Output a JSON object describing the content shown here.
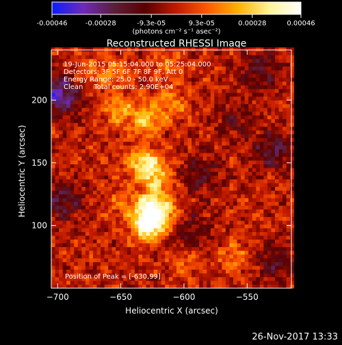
{
  "chart_data": {
    "type": "heatmap",
    "title": "Reconstructed RHESSI Image",
    "xlabel": "Heliocentric X (arcsec)",
    "ylabel": "Heliocentric Y (arcsec)",
    "xlim": [
      -705,
      -515
    ],
    "ylim": [
      50,
      240
    ],
    "xticks": [
      -700,
      -650,
      -600,
      -550
    ],
    "yticks": [
      100,
      150,
      200
    ],
    "colorbar": {
      "ticks": [
        "-0.00046",
        "-0.00028",
        "-9.3e-05",
        "9.3e-05",
        "0.00028",
        "0.00046"
      ],
      "tick_values": [
        -0.00046,
        -0.00028,
        -9.3e-05,
        9.3e-05,
        0.00028,
        0.00046
      ],
      "min": -0.00046,
      "max": 0.00046,
      "unit_label": "(photons cm⁻² s⁻¹ asec⁻²)",
      "colors": [
        "#0b1dff",
        "#6e2ab8",
        "#5b1f3a",
        "#5a0000",
        "#c21a00",
        "#ff5a00",
        "#ffb300",
        "#fff59a",
        "#ffffff"
      ]
    },
    "annotations": [
      "19-Jun-2015 05:15:04.000 to 05:25:04.000",
      "Detectors: 3F 5F 6F 7F 8F 9F, Att 0",
      "Energy Range: 25.0 - 50.0 keV",
      "Clean     Total counts: 2.90E+04"
    ],
    "peak_label": "Position of Peak = [-630,99]",
    "peak": [
      -630,
      99
    ],
    "sources": [
      {
        "x": -628,
        "y": 101,
        "amp": 0.00046
      },
      {
        "x": -625,
        "y": 114,
        "amp": 0.00038
      },
      {
        "x": -632,
        "y": 150,
        "amp": 0.0003
      },
      {
        "x": -622,
        "y": 139,
        "amp": 0.00022
      },
      {
        "x": -630,
        "y": 185,
        "amp": 0.00024
      },
      {
        "x": -652,
        "y": 192,
        "amp": 0.00018
      },
      {
        "x": -610,
        "y": 196,
        "amp": 0.00016
      },
      {
        "x": -612,
        "y": 228,
        "amp": 0.00014
      },
      {
        "x": -675,
        "y": 222,
        "amp": 0.00012
      },
      {
        "x": -655,
        "y": 222,
        "amp": 0.00012
      },
      {
        "x": -560,
        "y": 75,
        "amp": 0.00014
      },
      {
        "x": -598,
        "y": 72,
        "amp": 0.0001
      },
      {
        "x": -650,
        "y": 120,
        "amp": 0.0001
      },
      {
        "x": -610,
        "y": 110,
        "amp": 0.0001
      }
    ],
    "negatives": [
      {
        "x": -698,
        "y": 205,
        "amp": -0.00034
      },
      {
        "x": -696,
        "y": 120,
        "amp": -0.0002
      },
      {
        "x": -530,
        "y": 160,
        "amp": -0.0002
      },
      {
        "x": -540,
        "y": 225,
        "amp": -0.00018
      },
      {
        "x": -585,
        "y": 140,
        "amp": -0.00015
      },
      {
        "x": -595,
        "y": 95,
        "amp": -0.00016
      },
      {
        "x": -528,
        "y": 70,
        "amp": -0.00016
      },
      {
        "x": -560,
        "y": 185,
        "amp": -0.00012
      }
    ],
    "grid": false
  },
  "footer": {
    "date": "26-Nov-2017 13:33"
  }
}
